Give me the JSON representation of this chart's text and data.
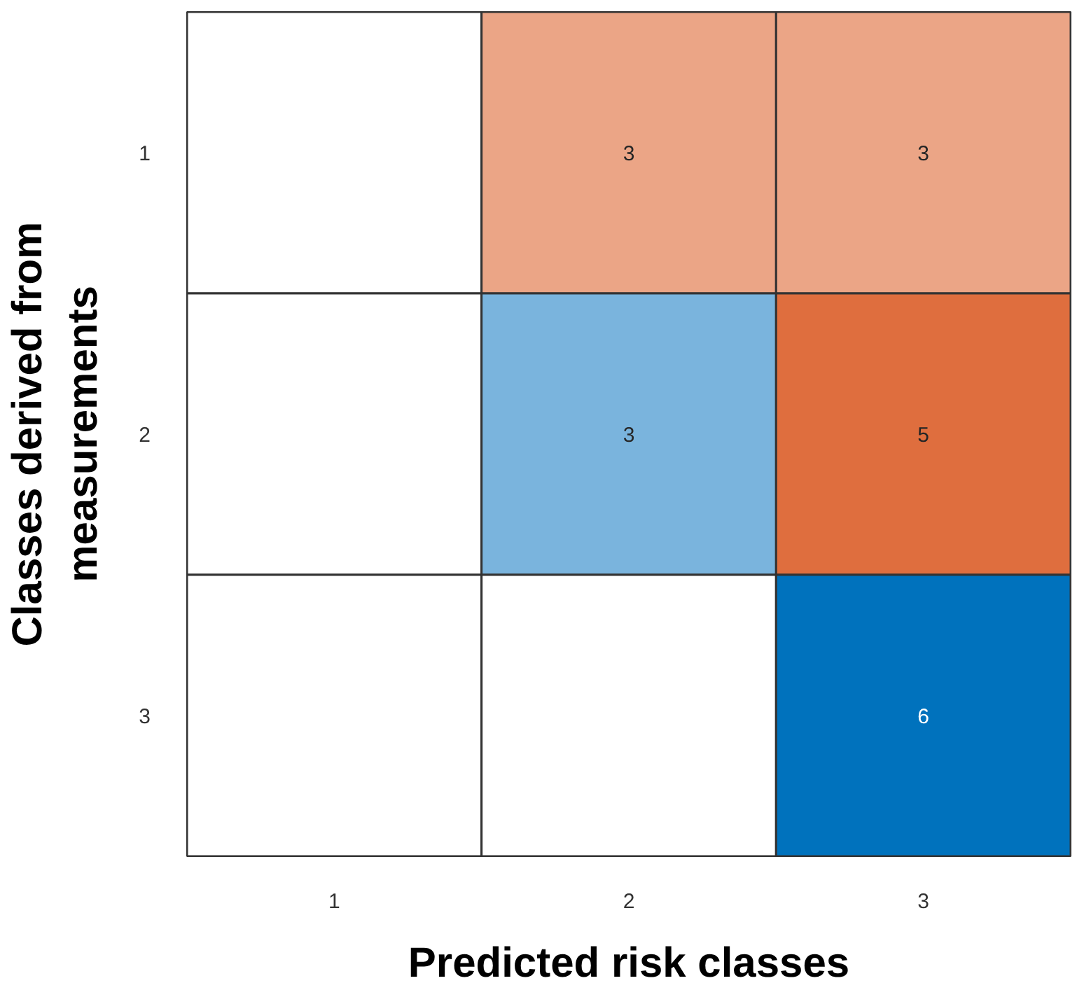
{
  "chart_data": {
    "type": "heatmap",
    "xlabel": "Predicted risk classes",
    "ylabel": "Classes derived from\nmeasurements",
    "categories": [
      "1",
      "2",
      "3"
    ],
    "data_labels": true,
    "y_categories": [
      "1",
      "2",
      "3"
    ],
    "cells": [
      [
        null,
        3,
        3
      ],
      [
        null,
        3,
        5
      ],
      [
        null,
        null,
        6
      ]
    ],
    "colors": [
      [
        null,
        "#eba586",
        "#eba586"
      ],
      [
        null,
        "#7ab4dd",
        "#df6e3e"
      ],
      [
        null,
        null,
        "#0072bd"
      ]
    ]
  }
}
